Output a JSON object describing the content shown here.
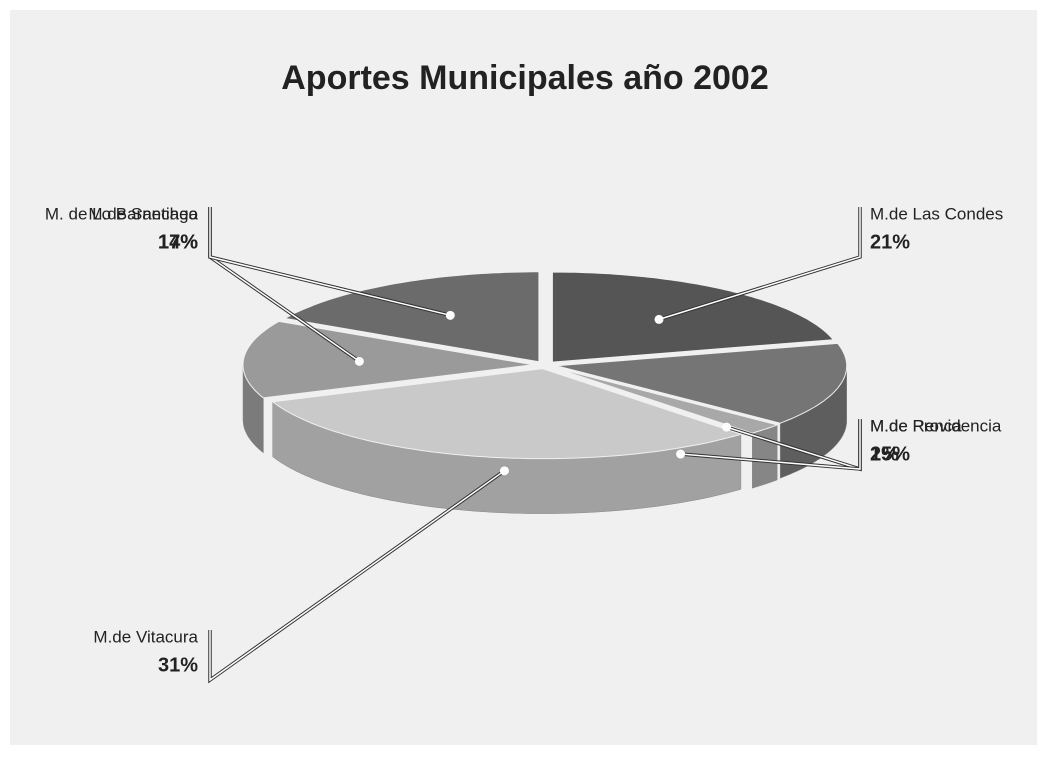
{
  "chart_data": {
    "type": "pie3d",
    "title": "Aportes Municipales año 2002",
    "categories": [
      "M.de Las Condes",
      "M.de Providencia",
      "M.de Renca",
      "M.de Vitacura",
      "M. de Lo Barnechea",
      "M.de Santiago"
    ],
    "values": [
      21,
      15,
      2,
      31,
      14,
      17
    ],
    "value_labels": [
      "21%",
      "15%",
      "2%",
      "31%",
      "14%",
      "17%"
    ],
    "colors": [
      "#555555",
      "#757575",
      "#a8a8a8",
      "#c9c9c9",
      "#9a9a9a",
      "#6b6b6b"
    ]
  }
}
